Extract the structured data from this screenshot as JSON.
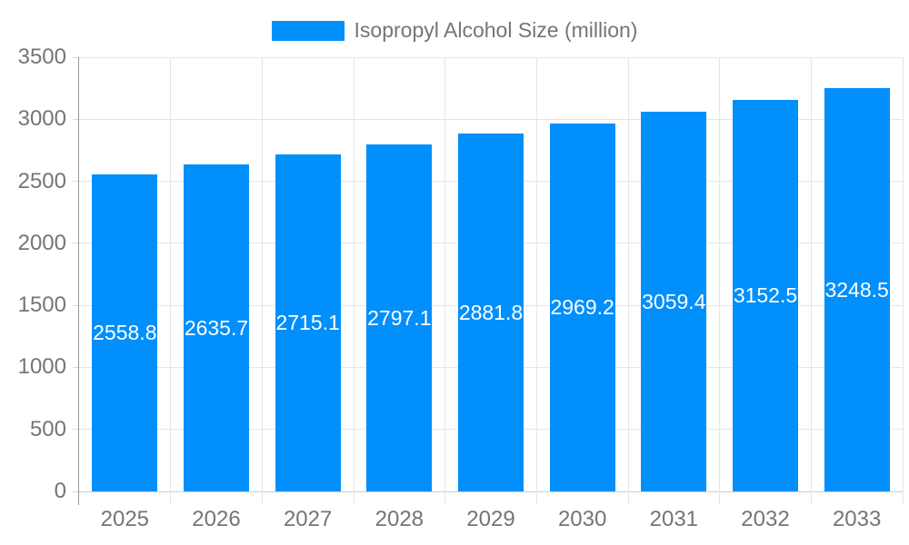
{
  "legend": {
    "label": "Isopropyl Alcohol Size (million)"
  },
  "colors": {
    "bar": "#008FFB",
    "grid": "#e6e6e6",
    "axis_line": "#999999",
    "tick_mark": "#d9d9d9",
    "axis_text": "#757575",
    "value_label_text": "#ffffff",
    "background": "#ffffff"
  },
  "chart_data": {
    "type": "bar",
    "title": "Isopropyl Alcohol Size (million)",
    "categories": [
      "2025",
      "2026",
      "2027",
      "2028",
      "2029",
      "2030",
      "2031",
      "2032",
      "2033"
    ],
    "values": [
      2558.8,
      2635.7,
      2715.1,
      2797.1,
      2881.8,
      2969.2,
      3059.4,
      3152.5,
      3248.5
    ],
    "series_name": "Isopropyl Alcohol Size (million)",
    "xlabel": "",
    "ylabel": "",
    "ylim": [
      0,
      3500
    ],
    "ytick_step": 500,
    "yticks": [
      0,
      500,
      1000,
      1500,
      2000,
      2500,
      3000,
      3500
    ],
    "grid": true,
    "legend_position": "top-center",
    "value_labels": "inside-middle",
    "bar_color": "#008FFB"
  }
}
